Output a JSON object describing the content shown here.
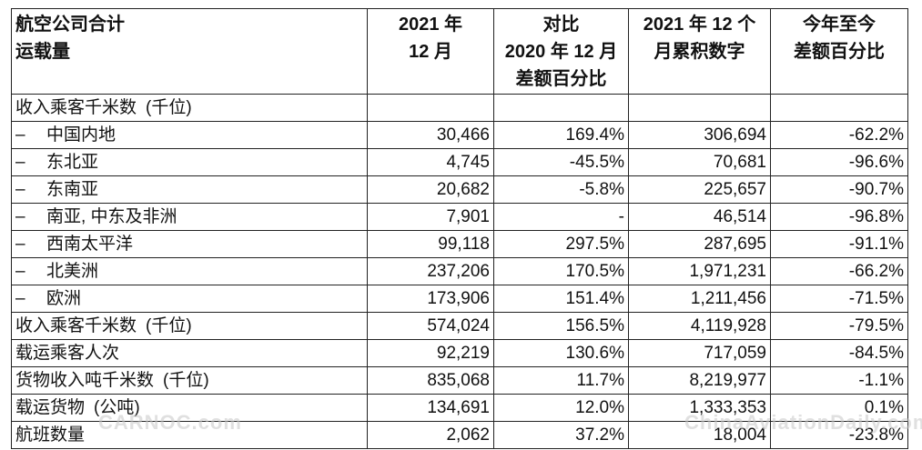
{
  "table": {
    "header": {
      "col1": [
        "航空公司合计",
        "运载量"
      ],
      "col2": [
        "2021 年",
        "12 月"
      ],
      "col3": [
        "对比",
        "2020 年 12 月",
        "差额百分比"
      ],
      "col4": [
        "2021 年 12 个",
        "月累积数字"
      ],
      "col5": [
        "今年至今",
        "差额百分比"
      ]
    },
    "section_label": "收入乘客千米数",
    "section_unit": "(千位)",
    "region_rows": [
      {
        "dash": "–",
        "label": "中国内地",
        "m": "30,466",
        "yoy": "169.4%",
        "ytd": "306,694",
        "ytd_pct": "-62.2%"
      },
      {
        "dash": "–",
        "label": "东北亚",
        "m": "4,745",
        "yoy": "-45.5%",
        "ytd": "70,681",
        "ytd_pct": "-96.6%"
      },
      {
        "dash": "–",
        "label": "东南亚",
        "m": "20,682",
        "yoy": "-5.8%",
        "ytd": "225,657",
        "ytd_pct": "-90.7%"
      },
      {
        "dash": "–",
        "label": "南亚, 中东及非洲",
        "m": "7,901",
        "yoy": "-",
        "ytd": "46,514",
        "ytd_pct": "-96.8%"
      },
      {
        "dash": "–",
        "label": "西南太平洋",
        "m": "99,118",
        "yoy": "297.5%",
        "ytd": "287,695",
        "ytd_pct": "-91.1%"
      },
      {
        "dash": "–",
        "label": "北美洲",
        "m": "237,206",
        "yoy": "170.5%",
        "ytd": "1,971,231",
        "ytd_pct": "-66.2%"
      },
      {
        "dash": "–",
        "label": "欧洲",
        "m": "173,906",
        "yoy": "151.4%",
        "ytd": "1,211,456",
        "ytd_pct": "-71.5%"
      }
    ],
    "total_rows": [
      {
        "label": "收入乘客千米数",
        "unit": "(千位)",
        "m": "574,024",
        "yoy": "156.5%",
        "ytd": "4,119,928",
        "ytd_pct": "-79.5%"
      },
      {
        "label": "载运乘客人次",
        "unit": "",
        "m": "92,219",
        "yoy": "130.6%",
        "ytd": "717,059",
        "ytd_pct": "-84.5%"
      },
      {
        "label": "货物收入吨千米数",
        "unit": "(千位)",
        "m": "835,068",
        "yoy": "11.7%",
        "ytd": "8,219,977",
        "ytd_pct": "-1.1%"
      },
      {
        "label": "载运货物",
        "unit": "(公吨)",
        "m": "134,691",
        "yoy": "12.0%",
        "ytd": "1,333,353",
        "ytd_pct": "0.1%"
      },
      {
        "label": "航班数量",
        "unit": "",
        "m": "2,062",
        "yoy": "37.2%",
        "ytd": "18,004",
        "ytd_pct": "-23.8%"
      }
    ]
  },
  "watermarks": {
    "left": "CARNOC.com",
    "right": "ChinaAviationDaily.com"
  }
}
